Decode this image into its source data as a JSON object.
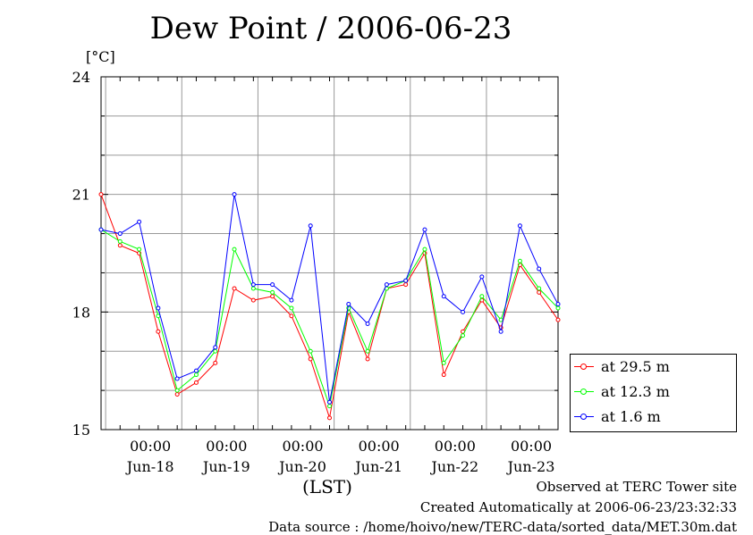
{
  "title": "Dew Point / 2006-06-23",
  "unit": "[°C]",
  "xaxis_label": "(LST)",
  "footer": [
    "Observed at TERC Tower site",
    "Created Automatically at 2006-06-23/23:32:33",
    "Data source : /home/hoivo/new/TERC-data/sorted_data/MET.30m.dat"
  ],
  "colors": {
    "s1": "#ff0000",
    "s2": "#00ff00",
    "s3": "#0000ff",
    "grid": "#999999"
  },
  "chart_data": {
    "type": "line",
    "title": "Dew Point / 2006-06-23",
    "ylabel": "[°C]",
    "xlabel": "(LST)",
    "ylim": [
      15,
      24
    ],
    "xlim": [
      0,
      6
    ],
    "grid": true,
    "legend_position": "right",
    "y_ticks": [
      "15",
      "18",
      "21",
      "24"
    ],
    "x_ticks": [
      {
        "time": "00:00",
        "date": "Jun-18"
      },
      {
        "time": "00:00",
        "date": "Jun-19"
      },
      {
        "time": "00:00",
        "date": "Jun-20"
      },
      {
        "time": "00:00",
        "date": "Jun-21"
      },
      {
        "time": "00:00",
        "date": "Jun-22"
      },
      {
        "time": "00:00",
        "date": "Jun-23"
      }
    ],
    "x": [
      0,
      0.25,
      0.5,
      0.75,
      1,
      1.25,
      1.5,
      1.75,
      2,
      2.25,
      2.5,
      2.75,
      3,
      3.25,
      3.5,
      3.75,
      4,
      4.25,
      4.5,
      4.75,
      5,
      5.25,
      5.5,
      5.75,
      6
    ],
    "series": [
      {
        "name": "at 29.5 m",
        "values": [
          21.0,
          19.7,
          19.5,
          17.5,
          15.9,
          16.2,
          16.7,
          18.6,
          18.3,
          18.4,
          17.9,
          16.8,
          15.3,
          18.0,
          16.8,
          18.6,
          18.7,
          19.5,
          16.4,
          17.5,
          18.3,
          17.6,
          19.2,
          18.5,
          17.8
        ]
      },
      {
        "name": "at 12.3 m",
        "values": [
          20.1,
          19.8,
          19.6,
          17.9,
          16.0,
          16.4,
          17.0,
          19.6,
          18.6,
          18.5,
          18.1,
          17.0,
          15.6,
          18.1,
          17.0,
          18.6,
          18.8,
          19.6,
          16.7,
          17.4,
          18.4,
          17.8,
          19.3,
          18.6,
          18.1
        ]
      },
      {
        "name": "at 1.6 m",
        "values": [
          20.1,
          20.0,
          20.3,
          18.1,
          16.3,
          16.5,
          17.1,
          21.0,
          18.7,
          18.7,
          18.3,
          20.2,
          15.7,
          18.2,
          17.7,
          18.7,
          18.8,
          20.1,
          18.4,
          18.0,
          18.9,
          17.5,
          20.2,
          19.1,
          18.2
        ]
      }
    ]
  }
}
